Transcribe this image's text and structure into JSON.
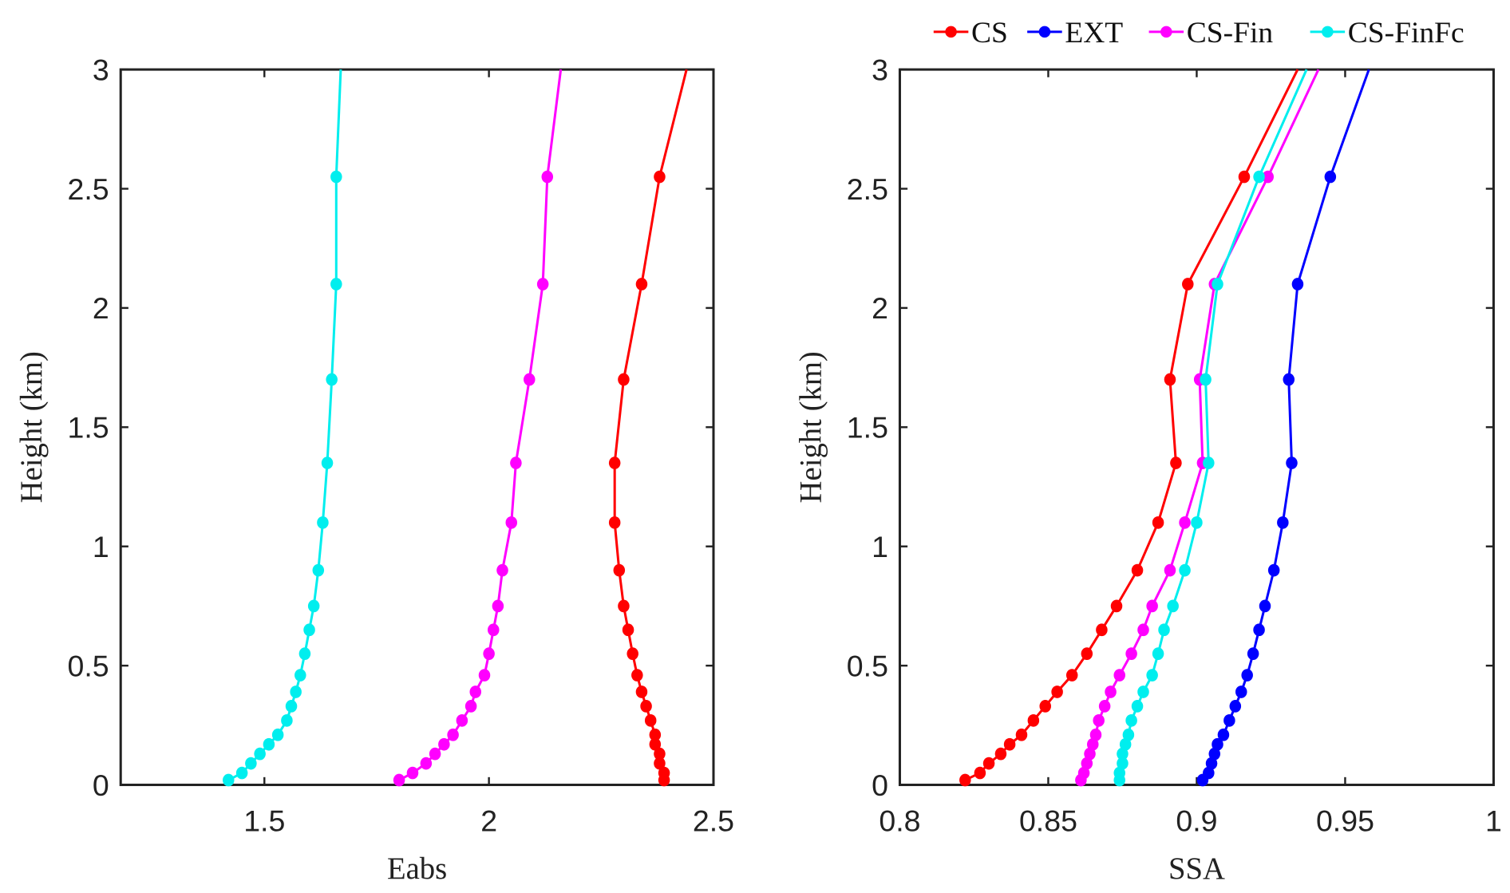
{
  "legend": [
    {
      "name": "CS",
      "color": "#ff0000"
    },
    {
      "name": "EXT",
      "color": "#0000ff"
    },
    {
      "name": "CS-Fin",
      "color": "#ff00ff"
    },
    {
      "name": "CS-FinFc",
      "color": "#00eeee"
    }
  ],
  "chart_data": [
    {
      "type": "line",
      "xlabel": "Eabs",
      "ylabel": "Height (km)",
      "xlim": [
        1.18,
        2.5
      ],
      "ylim": [
        0,
        3
      ],
      "xticks": [
        "1.5",
        "2",
        "2.5"
      ],
      "xtick_values": [
        1.5,
        2,
        2.5
      ],
      "yticks": [
        "0",
        "0.5",
        "1",
        "1.5",
        "2",
        "2.5",
        "3"
      ],
      "ytick_values": [
        0,
        0.5,
        1,
        1.5,
        2,
        2.5,
        3
      ],
      "height": [
        0.02,
        0.05,
        0.09,
        0.13,
        0.17,
        0.21,
        0.27,
        0.33,
        0.39,
        0.46,
        0.55,
        0.65,
        0.75,
        0.9,
        1.1,
        1.35,
        1.7,
        2.1,
        2.55,
        3.0
      ],
      "last_point_unmarked": true,
      "series": [
        {
          "name": "CS",
          "color": "#ff0000",
          "values": [
            2.39,
            2.39,
            2.38,
            2.38,
            2.37,
            2.37,
            2.36,
            2.35,
            2.34,
            2.33,
            2.32,
            2.31,
            2.3,
            2.29,
            2.28,
            2.28,
            2.3,
            2.34,
            2.38,
            2.44
          ]
        },
        {
          "name": "CS-Fin",
          "color": "#ff00ff",
          "values": [
            1.8,
            1.83,
            1.86,
            1.88,
            1.9,
            1.92,
            1.94,
            1.96,
            1.97,
            1.99,
            2.0,
            2.01,
            2.02,
            2.03,
            2.05,
            2.06,
            2.09,
            2.12,
            2.13,
            2.16
          ]
        },
        {
          "name": "CS-FinFc",
          "color": "#00eeee",
          "values": [
            1.42,
            1.45,
            1.47,
            1.49,
            1.51,
            1.53,
            1.55,
            1.56,
            1.57,
            1.58,
            1.59,
            1.6,
            1.61,
            1.62,
            1.63,
            1.64,
            1.65,
            1.66,
            1.66,
            1.67
          ]
        }
      ]
    },
    {
      "type": "line",
      "xlabel": "SSA",
      "ylabel": "Height (km)",
      "xlim": [
        0.8,
        1.0
      ],
      "ylim": [
        0,
        3
      ],
      "xticks": [
        "0.8",
        "0.85",
        "0.9",
        "0.95",
        "1"
      ],
      "xtick_values": [
        0.8,
        0.85,
        0.9,
        0.95,
        1.0
      ],
      "yticks": [
        "0",
        "0.5",
        "1",
        "1.5",
        "2",
        "2.5",
        "3"
      ],
      "ytick_values": [
        0,
        0.5,
        1,
        1.5,
        2,
        2.5,
        3
      ],
      "height": [
        0.02,
        0.05,
        0.09,
        0.13,
        0.17,
        0.21,
        0.27,
        0.33,
        0.39,
        0.46,
        0.55,
        0.65,
        0.75,
        0.9,
        1.1,
        1.35,
        1.7,
        2.1,
        2.55,
        3.0
      ],
      "last_point_unmarked": true,
      "series": [
        {
          "name": "CS",
          "color": "#ff0000",
          "values": [
            0.822,
            0.827,
            0.83,
            0.834,
            0.837,
            0.841,
            0.845,
            0.849,
            0.853,
            0.858,
            0.863,
            0.868,
            0.873,
            0.88,
            0.887,
            0.893,
            0.891,
            0.897,
            0.916,
            0.934
          ]
        },
        {
          "name": "EXT",
          "color": "#0000ff",
          "values": [
            0.902,
            0.904,
            0.905,
            0.906,
            0.907,
            0.909,
            0.911,
            0.913,
            0.915,
            0.917,
            0.919,
            0.921,
            0.923,
            0.926,
            0.929,
            0.932,
            0.931,
            0.934,
            0.945,
            0.958
          ]
        },
        {
          "name": "CS-Fin",
          "color": "#ff00ff",
          "values": [
            0.861,
            0.862,
            0.863,
            0.864,
            0.865,
            0.866,
            0.867,
            0.869,
            0.871,
            0.874,
            0.878,
            0.882,
            0.885,
            0.891,
            0.896,
            0.902,
            0.901,
            0.906,
            0.924,
            0.941
          ]
        },
        {
          "name": "CS-FinFc",
          "color": "#00eeee",
          "values": [
            0.874,
            0.874,
            0.875,
            0.875,
            0.876,
            0.877,
            0.878,
            0.88,
            0.882,
            0.885,
            0.887,
            0.889,
            0.892,
            0.896,
            0.9,
            0.904,
            0.903,
            0.907,
            0.921,
            0.937
          ]
        }
      ]
    }
  ]
}
